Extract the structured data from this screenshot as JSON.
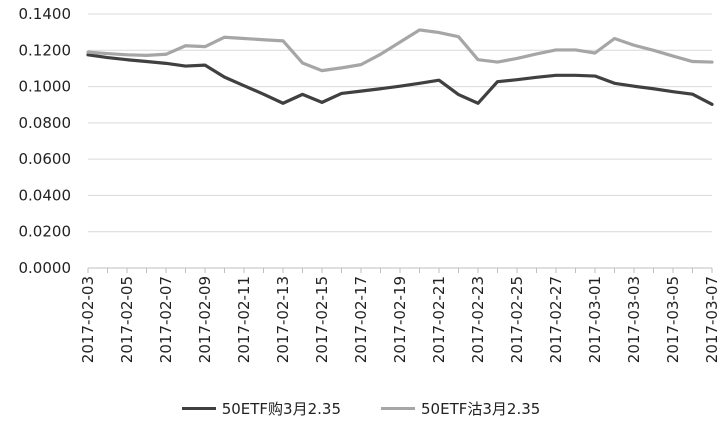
{
  "chart_data": {
    "type": "line",
    "title": "",
    "xlabel": "",
    "ylabel": "",
    "ylim": [
      0,
      0.14
    ],
    "yticks": [
      "0.0000",
      "0.0200",
      "0.0400",
      "0.0600",
      "0.0800",
      "0.1000",
      "0.1200",
      "0.1400"
    ],
    "x": [
      "2017-02-03",
      "2017-02-04",
      "2017-02-05",
      "2017-02-06",
      "2017-02-07",
      "2017-02-08",
      "2017-02-09",
      "2017-02-10",
      "2017-02-11",
      "2017-02-12",
      "2017-02-13",
      "2017-02-14",
      "2017-02-15",
      "2017-02-16",
      "2017-02-17",
      "2017-02-18",
      "2017-02-19",
      "2017-02-20",
      "2017-02-21",
      "2017-02-22",
      "2017-02-23",
      "2017-02-24",
      "2017-02-25",
      "2017-02-26",
      "2017-02-27",
      "2017-02-28",
      "2017-03-01",
      "2017-03-02",
      "2017-03-03",
      "2017-03-04",
      "2017-03-05",
      "2017-03-06",
      "2017-03-07"
    ],
    "xtick_labels": [
      "2017-02-03",
      "2017-02-05",
      "2017-02-07",
      "2017-02-09",
      "2017-02-11",
      "2017-02-13",
      "2017-02-15",
      "2017-02-17",
      "2017-02-19",
      "2017-02-21",
      "2017-02-23",
      "2017-02-25",
      "2017-02-27",
      "2017-03-01",
      "2017-03-03",
      "2017-03-05",
      "2017-03-07"
    ],
    "grid": true,
    "legend_position": "bottom",
    "series": [
      {
        "name": "50ETF购3月2.35",
        "color": "#404040",
        "values": [
          0.1175,
          0.116,
          0.1148,
          0.1138,
          0.1128,
          0.1113,
          0.1118,
          0.1052,
          0.1005,
          0.0958,
          0.0908,
          0.0957,
          0.0913,
          0.0962,
          0.0975,
          0.0988,
          0.1002,
          0.1018,
          0.1035,
          0.0956,
          0.0908,
          0.1027,
          0.1038,
          0.1051,
          0.1062,
          0.1062,
          0.1058,
          0.1018,
          0.1002,
          0.0988,
          0.0972,
          0.0958,
          0.0902
        ]
      },
      {
        "name": "50ETF沽3月2.35",
        "color": "#a6a6a6",
        "values": [
          0.119,
          0.1182,
          0.1175,
          0.1172,
          0.1178,
          0.1225,
          0.122,
          0.1272,
          0.1265,
          0.1258,
          0.1252,
          0.113,
          0.1088,
          0.1103,
          0.1121,
          0.1178,
          0.1245,
          0.1312,
          0.1298,
          0.1275,
          0.1148,
          0.1135,
          0.1155,
          0.118,
          0.1202,
          0.1202,
          0.1185,
          0.1265,
          0.1228,
          0.12,
          0.1168,
          0.1138,
          0.1135
        ]
      }
    ]
  }
}
